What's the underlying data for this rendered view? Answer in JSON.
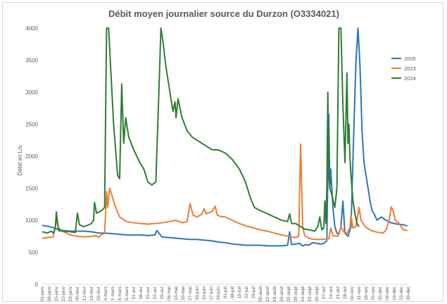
{
  "chart_data": {
    "type": "line",
    "title": "Débit moyen journalier source du Durzon (O3334021)",
    "ylabel": "Débit en L/s",
    "xlabel": "",
    "ylim": [
      0,
      4000
    ],
    "yticks": [
      0,
      500,
      1000,
      1500,
      2000,
      2500,
      3000,
      3500,
      4000
    ],
    "grid": false,
    "legend_position": "right",
    "x_unit": "day of year",
    "categories": [
      "01-janv",
      "08-janv",
      "15-janv",
      "22-janv",
      "29-janv",
      "05-févr",
      "12-févr",
      "19-févr",
      "26-févr",
      "4-mars",
      "1-mars",
      "8-mars",
      "5-mars",
      "01-avr",
      "08-avr",
      "15-avr",
      "22-avr",
      "29-avr",
      "06-mai",
      "13-mai",
      "20-mai",
      "27-mai",
      "03-juin",
      "10-juin",
      "17-juin",
      "24-juin",
      "01-juil",
      "08-juil",
      "15-juil",
      "22-juil",
      "29-juil",
      "05-août",
      "12-août",
      "19-août",
      "26-août",
      "02-sept",
      "09-sept",
      "16-sept",
      "23-sept",
      "30-sept",
      "07-oct",
      "14-oct",
      "21-oct",
      "28-oct",
      "04-nov",
      "11-nov",
      "18-nov",
      "25-nov",
      "02-déc",
      "09-déc",
      "16-déc",
      "23-déc",
      "30-déc"
    ],
    "series": [
      {
        "name": "2005",
        "color": "#2e75b6",
        "points": [
          [
            1,
            920
          ],
          [
            8,
            900
          ],
          [
            15,
            870
          ],
          [
            18,
            830
          ],
          [
            22,
            840
          ],
          [
            29,
            830
          ],
          [
            36,
            830
          ],
          [
            43,
            830
          ],
          [
            50,
            820
          ],
          [
            57,
            800
          ],
          [
            64,
            800
          ],
          [
            71,
            790
          ],
          [
            78,
            780
          ],
          [
            85,
            770
          ],
          [
            92,
            770
          ],
          [
            99,
            770
          ],
          [
            106,
            760
          ],
          [
            113,
            770
          ],
          [
            115,
            840
          ],
          [
            118,
            780
          ],
          [
            120,
            740
          ],
          [
            127,
            730
          ],
          [
            134,
            720
          ],
          [
            141,
            710
          ],
          [
            148,
            700
          ],
          [
            155,
            700
          ],
          [
            162,
            690
          ],
          [
            169,
            680
          ],
          [
            176,
            660
          ],
          [
            183,
            650
          ],
          [
            190,
            630
          ],
          [
            197,
            620
          ],
          [
            204,
            610
          ],
          [
            211,
            610
          ],
          [
            218,
            610
          ],
          [
            225,
            600
          ],
          [
            232,
            600
          ],
          [
            239,
            600
          ],
          [
            245,
            610
          ],
          [
            247,
            820
          ],
          [
            249,
            620
          ],
          [
            253,
            630
          ],
          [
            257,
            640
          ],
          [
            260,
            600
          ],
          [
            263,
            620
          ],
          [
            266,
            610
          ],
          [
            270,
            650
          ],
          [
            274,
            640
          ],
          [
            278,
            630
          ],
          [
            281,
            640
          ],
          [
            284,
            680
          ],
          [
            286,
            2650
          ],
          [
            287,
            1500
          ],
          [
            288,
            1800
          ],
          [
            290,
            1200
          ],
          [
            292,
            900
          ],
          [
            294,
            800
          ],
          [
            296,
            780
          ],
          [
            298,
            900
          ],
          [
            300,
            1300
          ],
          [
            302,
            800
          ],
          [
            305,
            750
          ],
          [
            308,
            900
          ],
          [
            311,
            2500
          ],
          [
            313,
            3500
          ],
          [
            315,
            4050
          ],
          [
            317,
            3400
          ],
          [
            319,
            2400
          ],
          [
            321,
            1900
          ],
          [
            323,
            1700
          ],
          [
            325,
            1500
          ],
          [
            327,
            1300
          ],
          [
            329,
            1150
          ],
          [
            331,
            1100
          ],
          [
            334,
            1000
          ],
          [
            338,
            1050
          ],
          [
            343,
            1000
          ],
          [
            348,
            960
          ],
          [
            354,
            940
          ],
          [
            360,
            930
          ],
          [
            364,
            910
          ]
        ]
      },
      {
        "name": "2023",
        "color": "#ed7d31",
        "points": [
          [
            1,
            720
          ],
          [
            6,
            730
          ],
          [
            12,
            740
          ],
          [
            15,
            1000
          ],
          [
            18,
            850
          ],
          [
            22,
            820
          ],
          [
            29,
            770
          ],
          [
            36,
            750
          ],
          [
            43,
            740
          ],
          [
            50,
            750
          ],
          [
            55,
            760
          ],
          [
            57,
            730
          ],
          [
            60,
            780
          ],
          [
            63,
            790
          ],
          [
            65,
            1450
          ],
          [
            66,
            1200
          ],
          [
            68,
            1500
          ],
          [
            70,
            1400
          ],
          [
            74,
            1200
          ],
          [
            78,
            1050
          ],
          [
            85,
            980
          ],
          [
            92,
            960
          ],
          [
            99,
            950
          ],
          [
            106,
            940
          ],
          [
            113,
            950
          ],
          [
            120,
            960
          ],
          [
            127,
            980
          ],
          [
            134,
            1000
          ],
          [
            140,
            960
          ],
          [
            145,
            980
          ],
          [
            148,
            1260
          ],
          [
            151,
            1080
          ],
          [
            155,
            1050
          ],
          [
            160,
            1100
          ],
          [
            162,
            1180
          ],
          [
            164,
            1100
          ],
          [
            167,
            1120
          ],
          [
            170,
            1140
          ],
          [
            173,
            1220
          ],
          [
            175,
            1080
          ],
          [
            178,
            1060
          ],
          [
            183,
            1050
          ],
          [
            190,
            1000
          ],
          [
            197,
            950
          ],
          [
            204,
            910
          ],
          [
            211,
            880
          ],
          [
            218,
            850
          ],
          [
            225,
            830
          ],
          [
            232,
            800
          ],
          [
            239,
            770
          ],
          [
            246,
            750
          ],
          [
            253,
            730
          ],
          [
            256,
            750
          ],
          [
            258,
            2190
          ],
          [
            260,
            900
          ],
          [
            262,
            760
          ],
          [
            266,
            720
          ],
          [
            272,
            700
          ],
          [
            280,
            700
          ],
          [
            284,
            710
          ],
          [
            286,
            710
          ],
          [
            288,
            880
          ],
          [
            290,
            760
          ],
          [
            295,
            750
          ],
          [
            298,
            900
          ],
          [
            301,
            820
          ],
          [
            304,
            800
          ],
          [
            307,
            880
          ],
          [
            308,
            1080
          ],
          [
            310,
            880
          ],
          [
            313,
            900
          ],
          [
            316,
            1200
          ],
          [
            318,
            1000
          ],
          [
            322,
            900
          ],
          [
            328,
            840
          ],
          [
            335,
            810
          ],
          [
            340,
            800
          ],
          [
            343,
            850
          ],
          [
            346,
            1000
          ],
          [
            348,
            1210
          ],
          [
            350,
            1150
          ],
          [
            352,
            1000
          ],
          [
            356,
            950
          ],
          [
            360,
            850
          ],
          [
            364,
            840
          ]
        ]
      },
      {
        "name": "2024",
        "color": "#2e7d32",
        "points": [
          [
            1,
            820
          ],
          [
            6,
            800
          ],
          [
            10,
            830
          ],
          [
            12,
            800
          ],
          [
            14,
            870
          ],
          [
            15,
            1130
          ],
          [
            17,
            870
          ],
          [
            22,
            830
          ],
          [
            29,
            820
          ],
          [
            34,
            810
          ],
          [
            36,
            1110
          ],
          [
            38,
            930
          ],
          [
            42,
            900
          ],
          [
            46,
            920
          ],
          [
            50,
            950
          ],
          [
            52,
            1000
          ],
          [
            53,
            1280
          ],
          [
            55,
            1110
          ],
          [
            60,
            1150
          ],
          [
            63,
            1200
          ],
          [
            65,
            4050
          ],
          [
            67,
            4050
          ],
          [
            69,
            3400
          ],
          [
            72,
            2500
          ],
          [
            76,
            1700
          ],
          [
            78,
            1650
          ],
          [
            80,
            3130
          ],
          [
            82,
            2200
          ],
          [
            84,
            2600
          ],
          [
            87,
            2300
          ],
          [
            92,
            2100
          ],
          [
            98,
            1900
          ],
          [
            102,
            1800
          ],
          [
            106,
            1600
          ],
          [
            110,
            1550
          ],
          [
            114,
            1600
          ],
          [
            117,
            3000
          ],
          [
            119,
            4050
          ],
          [
            121,
            3800
          ],
          [
            124,
            3400
          ],
          [
            128,
            3000
          ],
          [
            131,
            2700
          ],
          [
            133,
            2850
          ],
          [
            134,
            2600
          ],
          [
            136,
            2900
          ],
          [
            140,
            2600
          ],
          [
            145,
            2400
          ],
          [
            150,
            2300
          ],
          [
            155,
            2250
          ],
          [
            160,
            2200
          ],
          [
            165,
            2150
          ],
          [
            170,
            2100
          ],
          [
            176,
            2100
          ],
          [
            183,
            2050
          ],
          [
            190,
            1950
          ],
          [
            197,
            1800
          ],
          [
            203,
            1600
          ],
          [
            208,
            1350
          ],
          [
            212,
            1200
          ],
          [
            218,
            1150
          ],
          [
            225,
            1100
          ],
          [
            232,
            1050
          ],
          [
            239,
            1000
          ],
          [
            245,
            980
          ],
          [
            247,
            1100
          ],
          [
            249,
            950
          ],
          [
            253,
            950
          ],
          [
            258,
            900
          ],
          [
            262,
            860
          ],
          [
            267,
            850
          ],
          [
            272,
            830
          ],
          [
            275,
            900
          ],
          [
            277,
            1050
          ],
          [
            279,
            850
          ],
          [
            281,
            880
          ],
          [
            282,
            1300
          ],
          [
            283,
            950
          ],
          [
            284,
            1500
          ],
          [
            285,
            3000
          ],
          [
            286,
            1700
          ],
          [
            287,
            1500
          ],
          [
            289,
            1400
          ],
          [
            292,
            1200
          ],
          [
            294,
            1500
          ],
          [
            296,
            4050
          ],
          [
            298,
            4050
          ],
          [
            300,
            2800
          ],
          [
            302,
            1900
          ],
          [
            304,
            3300
          ],
          [
            305,
            2200
          ],
          [
            306,
            2500
          ],
          [
            307,
            2000
          ],
          [
            308,
            1700
          ],
          [
            310,
            1300
          ],
          [
            312,
            1100
          ],
          [
            314,
            950
          ],
          [
            316,
            900
          ]
        ]
      }
    ]
  }
}
